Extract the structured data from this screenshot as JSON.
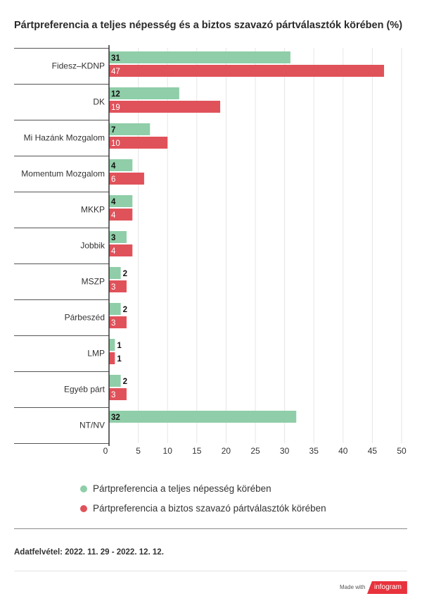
{
  "title": "Pártpreferencia a teljes népesség és a biztos szavazó pártválasztók körében (%)",
  "footer_note": "Adatfelvétel: 2022. 11. 29 - 2022. 12. 12.",
  "made_with": "Made with",
  "brand": "infogram",
  "colors": {
    "series1": "#8fcea8",
    "series2": "#e0525a",
    "axis": "#333333",
    "grid": "#e6e6e6",
    "rowline": "#555555"
  },
  "chart_data": {
    "type": "bar",
    "orientation": "horizontal",
    "categories": [
      "Fidesz–KDNP",
      "DK",
      "Mi Hazánk Mozgalom",
      "Momentum Mozgalom",
      "MKKP",
      "Jobbik",
      "MSZP",
      "Párbeszéd",
      "LMP",
      "Egyéb párt",
      "NT/NV"
    ],
    "series": [
      {
        "name": "Pártpreferencia a teljes népesség körében",
        "values": [
          31,
          12,
          7,
          4,
          4,
          3,
          2,
          2,
          1,
          2,
          32
        ],
        "color": "#8fcea8"
      },
      {
        "name": "Pártpreferencia a biztos szavazó pártválasztók körében",
        "values": [
          47,
          19,
          10,
          6,
          4,
          4,
          3,
          3,
          1,
          3,
          null
        ],
        "color": "#e0525a"
      }
    ],
    "data_labels": [
      [
        "31",
        "12",
        "7",
        "4",
        "4",
        "3",
        "2",
        "2",
        "1",
        "2",
        "32"
      ],
      [
        "47",
        "19",
        "10",
        "6",
        "4",
        "4",
        "3",
        "3",
        "1",
        "3",
        null
      ]
    ],
    "xlim": [
      0,
      50
    ],
    "xticks": [
      0,
      5,
      10,
      15,
      20,
      25,
      30,
      35,
      40,
      45,
      50
    ],
    "grid": true,
    "legend_position": "bottom"
  }
}
